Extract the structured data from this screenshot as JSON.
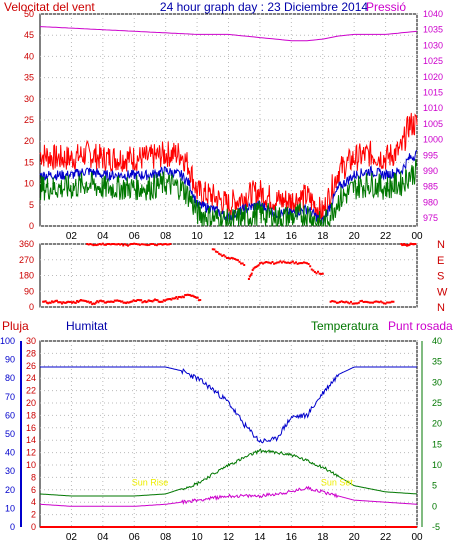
{
  "header": {
    "left": "Velocitat del vent",
    "center": "24 hour graph day : 23 Diciembre 2014",
    "right": "Pressió"
  },
  "legend2": {
    "pluja": "Pluja",
    "humitat": "Humitat",
    "temperatura": "Temperatura",
    "punt_rosada": "Punt rosada"
  },
  "colors": {
    "red": "#ff0000",
    "blue": "#0000cc",
    "green": "#007700",
    "magenta": "#cc00cc",
    "grid": "#bbbbbb",
    "annot": "#eeee00"
  },
  "chart_data": [
    {
      "type": "line",
      "name": "wind-pressure",
      "x_ticks": [
        "02",
        "04",
        "06",
        "08",
        "10",
        "12",
        "14",
        "16",
        "18",
        "20",
        "22",
        "00"
      ],
      "y_left": {
        "ticks": [
          0,
          5,
          10,
          15,
          20,
          25,
          30,
          35,
          40,
          45,
          50
        ],
        "range": [
          0,
          50
        ]
      },
      "y_right": {
        "ticks": [
          975,
          980,
          985,
          990,
          995,
          1000,
          1005,
          1010,
          1015,
          1020,
          1025,
          1030,
          1035,
          1040
        ],
        "range": [
          972.5,
          1040
        ]
      },
      "series": [
        {
          "axis": "left",
          "color": "#ff0000",
          "hours": [
            0,
            1,
            2,
            3,
            4,
            5,
            6,
            7,
            8,
            9,
            9.5,
            10,
            11,
            12,
            13,
            14,
            15,
            16,
            17,
            18,
            18.5,
            19,
            20,
            21,
            22,
            23,
            23.5,
            24
          ],
          "values": [
            17,
            16,
            16,
            17,
            16,
            16,
            16,
            16,
            17,
            17,
            14,
            8,
            7,
            5,
            7,
            8,
            6,
            6,
            7,
            3,
            8,
            13,
            16,
            17,
            16,
            18,
            24,
            24
          ]
        },
        {
          "axis": "left",
          "color": "#0000cc",
          "hours": [
            0,
            1,
            2,
            3,
            4,
            5,
            6,
            7,
            8,
            9,
            9.5,
            10,
            11,
            12,
            13,
            14,
            15,
            16,
            17,
            18,
            18.5,
            19,
            20,
            21,
            22,
            23,
            23.5,
            24
          ],
          "values": [
            12,
            12,
            12,
            13,
            12,
            12,
            12,
            12,
            13,
            12,
            10,
            5,
            4,
            2,
            4,
            5,
            3,
            3,
            4,
            1,
            5,
            9,
            12,
            13,
            12,
            13,
            16,
            17
          ]
        },
        {
          "axis": "left",
          "color": "#007700",
          "hours": [
            0,
            1,
            2,
            3,
            4,
            5,
            6,
            7,
            8,
            9,
            9.5,
            10,
            11,
            12,
            13,
            14,
            15,
            16,
            17,
            18,
            18.5,
            19,
            20,
            21,
            22,
            23,
            23.5,
            24
          ],
          "values": [
            9,
            9,
            9,
            10,
            9,
            9,
            9,
            9,
            10,
            9,
            7,
            3,
            2,
            1,
            2,
            3,
            2,
            2,
            3,
            0,
            3,
            6,
            9,
            10,
            9,
            10,
            12,
            13
          ]
        },
        {
          "axis": "right",
          "color": "#cc00cc",
          "hours": [
            0,
            2,
            4,
            6,
            8,
            10,
            12,
            14,
            16,
            17,
            18,
            19,
            20,
            22,
            24
          ],
          "values": [
            1036,
            1035.5,
            1035,
            1034.5,
            1034,
            1033.5,
            1033.5,
            1032.5,
            1031.5,
            1031.5,
            1032,
            1033,
            1033.5,
            1033.5,
            1034.5
          ]
        }
      ]
    },
    {
      "type": "scatter",
      "name": "wind-direction",
      "x_ticks": [
        "02",
        "04",
        "06",
        "08",
        "10",
        "12",
        "14",
        "16",
        "18",
        "20",
        "22",
        "00"
      ],
      "y_left": {
        "ticks": [
          0,
          90,
          180,
          270,
          360
        ],
        "range": [
          0,
          360
        ]
      },
      "y_right_labels": [
        "N",
        "W",
        "S",
        "E",
        "N"
      ],
      "points": [
        [
          0.2,
          30
        ],
        [
          0.6,
          25
        ],
        [
          1.0,
          35
        ],
        [
          1.4,
          20
        ],
        [
          1.8,
          30
        ],
        [
          2.2,
          25
        ],
        [
          2.6,
          40
        ],
        [
          3.0,
          30
        ],
        [
          3.4,
          20
        ],
        [
          3.8,
          35
        ],
        [
          4.2,
          25
        ],
        [
          4.6,
          30
        ],
        [
          5.0,
          35
        ],
        [
          5.4,
          25
        ],
        [
          5.8,
          30
        ],
        [
          6.2,
          40
        ],
        [
          6.6,
          30
        ],
        [
          7.0,
          35
        ],
        [
          7.4,
          40
        ],
        [
          7.8,
          30
        ],
        [
          8.2,
          45
        ],
        [
          8.6,
          50
        ],
        [
          9.0,
          55
        ],
        [
          9.4,
          70
        ],
        [
          9.8,
          60
        ],
        [
          10.2,
          40
        ],
        [
          3.0,
          360
        ],
        [
          3.5,
          355
        ],
        [
          4.0,
          362
        ],
        [
          4.5,
          358
        ],
        [
          5.0,
          360
        ],
        [
          5.5,
          355
        ],
        [
          6.0,
          362
        ],
        [
          6.6,
          358
        ],
        [
          7.2,
          360
        ],
        [
          7.8,
          356
        ],
        [
          8.3,
          360
        ],
        [
          11.0,
          330
        ],
        [
          11.5,
          300
        ],
        [
          12.0,
          280
        ],
        [
          12.5,
          270
        ],
        [
          13.0,
          240
        ],
        [
          13.3,
          160
        ],
        [
          13.6,
          220
        ],
        [
          14.0,
          250
        ],
        [
          14.5,
          255
        ],
        [
          15.0,
          250
        ],
        [
          15.5,
          260
        ],
        [
          16.0,
          255
        ],
        [
          16.5,
          250
        ],
        [
          17.0,
          250
        ],
        [
          17.5,
          200
        ],
        [
          18.0,
          190
        ],
        [
          18.5,
          30
        ],
        [
          19.0,
          25
        ],
        [
          19.5,
          30
        ],
        [
          20.0,
          20
        ],
        [
          20.5,
          35
        ],
        [
          21.0,
          25
        ],
        [
          21.5,
          30
        ],
        [
          22.0,
          20
        ],
        [
          22.5,
          30
        ],
        [
          23.0,
          360
        ],
        [
          23.3,
          355
        ],
        [
          23.6,
          362
        ],
        [
          23.9,
          360
        ]
      ]
    },
    {
      "type": "line",
      "name": "rain-humidity-temp-dew",
      "x_ticks": [
        "02",
        "04",
        "06",
        "08",
        "10",
        "12",
        "14",
        "16",
        "18",
        "20",
        "22",
        "00"
      ],
      "y_humidity": {
        "ticks": [
          0,
          10,
          20,
          30,
          40,
          50,
          60,
          70,
          80,
          90,
          100
        ],
        "range": [
          0,
          100
        ]
      },
      "y_rain": {
        "ticks": [
          0,
          2,
          4,
          6,
          8,
          10,
          12,
          14,
          16,
          18,
          20,
          22,
          24,
          26,
          28,
          30
        ],
        "range": [
          0,
          30
        ]
      },
      "y_temp": {
        "ticks": [
          -5,
          0,
          5,
          10,
          15,
          20,
          25,
          30,
          35,
          40
        ],
        "range": [
          -5,
          40
        ]
      },
      "annotations": [
        {
          "text": "Sun Rise",
          "hour": 7.0,
          "value": 5.0
        },
        {
          "text": "Sun Set",
          "hour": 18.9,
          "value": 5.0
        }
      ],
      "series": [
        {
          "axis": "humidity",
          "color": "#0000cc",
          "hours": [
            0,
            2,
            4,
            6,
            8,
            9,
            10,
            11,
            12,
            13,
            14,
            15,
            16,
            17,
            18,
            19,
            20,
            22,
            24
          ],
          "values": [
            86,
            86,
            86,
            86,
            86,
            84,
            80,
            74,
            67,
            55,
            46,
            47,
            59,
            60,
            72,
            82,
            86,
            86,
            86
          ]
        },
        {
          "axis": "rain",
          "color": "#ff0000",
          "hours": [
            0,
            24
          ],
          "values": [
            0,
            0
          ]
        },
        {
          "axis": "temp",
          "color": "#007700",
          "hours": [
            0,
            2,
            4,
            6,
            8,
            10,
            12,
            14,
            16,
            18,
            20,
            22,
            24
          ],
          "values": [
            3.0,
            2.5,
            2.5,
            2.5,
            3.0,
            5.5,
            10.0,
            13.5,
            12.5,
            9.5,
            5.0,
            3.5,
            3.0
          ]
        },
        {
          "axis": "temp",
          "color": "#cc00cc",
          "hours": [
            0,
            2,
            4,
            6,
            8,
            10,
            12,
            14,
            16,
            17,
            18,
            20,
            22,
            24
          ],
          "values": [
            0.5,
            0.0,
            0.0,
            0.0,
            0.5,
            1.5,
            2.5,
            2.5,
            3.5,
            4.5,
            3.5,
            1.5,
            1.0,
            0.5
          ]
        }
      ]
    }
  ]
}
